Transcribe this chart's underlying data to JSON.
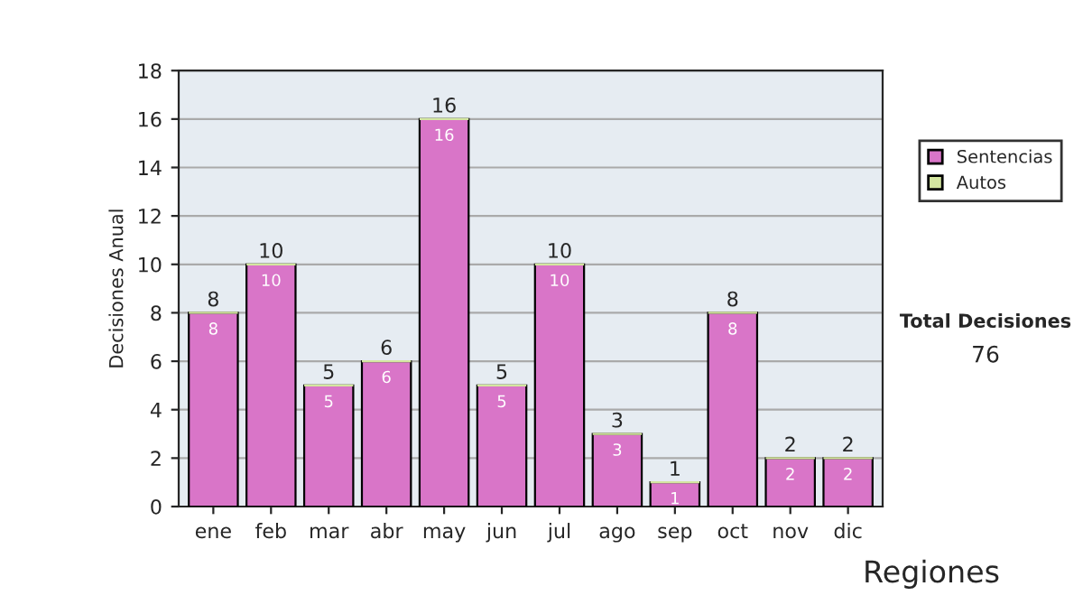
{
  "chart_data": {
    "type": "bar",
    "stacked": true,
    "ylabel": "Decisiones Anual",
    "categories": [
      "ene",
      "feb",
      "mar",
      "abr",
      "may",
      "jun",
      "jul",
      "ago",
      "sep",
      "oct",
      "nov",
      "dic"
    ],
    "series": [
      {
        "name": "Sentencias",
        "color": "#d975c8",
        "values": [
          8,
          10,
          5,
          6,
          16,
          5,
          10,
          3,
          1,
          8,
          2,
          2
        ],
        "value_labels": [
          "8",
          "10",
          "5",
          "6",
          "16",
          "5",
          "10",
          "3",
          "1",
          "8",
          "2",
          "2"
        ]
      },
      {
        "name": "Autos",
        "color": "#d4e6a0",
        "values": [
          0,
          0,
          0,
          0,
          0,
          0,
          0,
          0,
          0,
          0,
          0,
          0
        ]
      }
    ],
    "totals": [
      "8",
      "10",
      "5",
      "6",
      "16",
      "5",
      "10",
      "3",
      "1",
      "8",
      "2",
      "2"
    ],
    "ylim": [
      0,
      18
    ],
    "yticks": [
      0,
      2,
      4,
      6,
      8,
      10,
      12,
      14,
      16,
      18
    ],
    "grid": "y",
    "legend": "right",
    "annotations": [
      "Total Decisiones",
      "76",
      "Regiones"
    ]
  }
}
